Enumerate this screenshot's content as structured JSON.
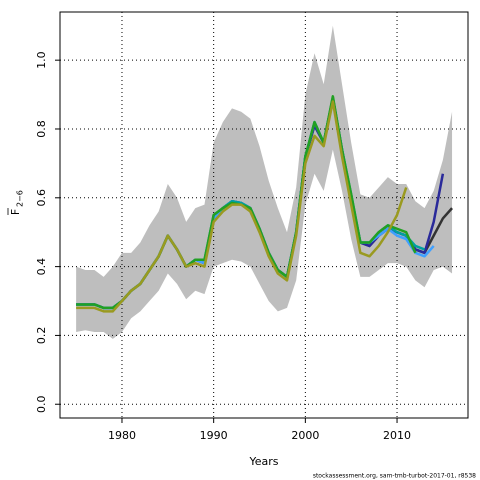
{
  "chart_data": {
    "type": "line",
    "xlabel": "Years",
    "ylabel": {
      "text": "F",
      "subscript": "2−6"
    },
    "footer": "stockassessment.org, sam-tmb-turbot-2017-01, r8538",
    "x": [
      1975,
      1976,
      1977,
      1978,
      1979,
      1980,
      1981,
      1982,
      1983,
      1984,
      1985,
      1986,
      1987,
      1988,
      1989,
      1990,
      1991,
      1992,
      1993,
      1994,
      1995,
      1996,
      1997,
      1998,
      1999,
      2000,
      2001,
      2002,
      2003,
      2004,
      2005,
      2006,
      2007,
      2008,
      2009,
      2010,
      2011,
      2012,
      2013,
      2014,
      2015,
      2016
    ],
    "xlim": [
      1973.24,
      2017.74
    ],
    "ylim": [
      -0.04,
      1.14
    ],
    "xticks": [
      1980,
      1990,
      2000,
      2010
    ],
    "yticks": [
      {
        "value": 0,
        "label": "0.0"
      },
      0.2,
      0.4,
      0.6,
      0.8,
      {
        "value": 1,
        "label": "1.0"
      }
    ],
    "grid": true,
    "band": {
      "color": "#bebebe",
      "upper": [
        0.4,
        0.39,
        0.39,
        0.37,
        0.4,
        0.44,
        0.44,
        0.47,
        0.52,
        0.56,
        0.64,
        0.6,
        0.53,
        0.57,
        0.58,
        0.76,
        0.82,
        0.86,
        0.85,
        0.83,
        0.75,
        0.65,
        0.57,
        0.5,
        0.63,
        0.9,
        1.02,
        0.93,
        1.1,
        0.93,
        0.76,
        0.61,
        0.6,
        0.63,
        0.66,
        0.64,
        0.64,
        0.59,
        0.57,
        0.62,
        0.71,
        0.85
      ],
      "lower": [
        0.21,
        0.215,
        0.21,
        0.21,
        0.19,
        0.21,
        0.25,
        0.27,
        0.3,
        0.33,
        0.38,
        0.35,
        0.305,
        0.33,
        0.32,
        0.4,
        0.41,
        0.42,
        0.415,
        0.4,
        0.35,
        0.3,
        0.27,
        0.28,
        0.36,
        0.58,
        0.67,
        0.62,
        0.74,
        0.62,
        0.48,
        0.37,
        0.37,
        0.39,
        0.41,
        0.41,
        0.4,
        0.36,
        0.34,
        0.39,
        0.4,
        0.38
      ]
    },
    "series": [
      {
        "color": "#333333",
        "values": [
          0.29,
          0.29,
          0.29,
          0.28,
          0.28,
          0.3,
          0.33,
          0.35,
          0.39,
          0.43,
          0.49,
          0.45,
          0.4,
          0.42,
          0.41,
          0.54,
          0.57,
          0.59,
          0.585,
          0.57,
          0.51,
          0.44,
          0.39,
          0.37,
          0.5,
          0.72,
          0.81,
          0.76,
          0.89,
          0.74,
          0.6,
          0.47,
          0.46,
          0.49,
          0.51,
          0.5,
          0.49,
          0.45,
          0.44,
          0.49,
          0.54,
          0.57
        ]
      },
      {
        "color": "#2a2a9a",
        "values": [
          0.29,
          0.29,
          0.29,
          0.28,
          0.28,
          0.3,
          0.33,
          0.35,
          0.39,
          0.43,
          0.49,
          0.45,
          0.4,
          0.42,
          0.41,
          0.54,
          0.57,
          0.59,
          0.585,
          0.57,
          0.51,
          0.44,
          0.39,
          0.37,
          0.5,
          0.72,
          0.81,
          0.76,
          0.89,
          0.74,
          0.6,
          0.47,
          0.46,
          0.49,
          0.51,
          0.5,
          0.49,
          0.45,
          0.44,
          0.53,
          0.67,
          null
        ]
      },
      {
        "color": "#3fa0ff",
        "values": [
          0.29,
          0.29,
          0.29,
          0.28,
          0.28,
          0.3,
          0.33,
          0.35,
          0.39,
          0.43,
          0.49,
          0.45,
          0.4,
          0.42,
          0.41,
          0.54,
          0.57,
          0.59,
          0.585,
          0.57,
          0.51,
          0.44,
          0.39,
          0.37,
          0.5,
          0.72,
          0.82,
          0.76,
          0.89,
          0.74,
          0.6,
          0.47,
          0.47,
          0.49,
          0.51,
          0.49,
          0.48,
          0.44,
          0.43,
          0.46,
          null,
          null
        ]
      },
      {
        "color": "#00a0a0",
        "values": [
          0.29,
          0.29,
          0.29,
          0.28,
          0.28,
          0.3,
          0.33,
          0.35,
          0.39,
          0.43,
          0.49,
          0.45,
          0.4,
          0.42,
          0.42,
          0.55,
          0.57,
          0.59,
          0.585,
          0.57,
          0.51,
          0.44,
          0.39,
          0.37,
          0.5,
          0.72,
          0.82,
          0.76,
          0.89,
          0.74,
          0.61,
          0.47,
          0.47,
          0.5,
          0.52,
          0.5,
          0.49,
          0.46,
          0.45,
          null,
          null,
          null
        ]
      },
      {
        "color": "#22a022",
        "values": [
          0.29,
          0.29,
          0.29,
          0.28,
          0.28,
          0.3,
          0.33,
          0.35,
          0.39,
          0.43,
          0.49,
          0.45,
          0.4,
          0.42,
          0.42,
          0.55,
          0.57,
          0.585,
          0.58,
          0.57,
          0.51,
          0.44,
          0.39,
          0.37,
          0.5,
          0.72,
          0.82,
          0.76,
          0.895,
          0.74,
          0.61,
          0.47,
          0.47,
          0.5,
          0.52,
          0.51,
          0.5,
          0.44,
          null,
          null,
          null,
          null
        ]
      },
      {
        "color": "#9a9a20",
        "values": [
          0.28,
          0.28,
          0.28,
          0.27,
          0.27,
          0.3,
          0.33,
          0.35,
          0.39,
          0.43,
          0.49,
          0.45,
          0.4,
          0.41,
          0.4,
          0.53,
          0.56,
          0.58,
          0.58,
          0.56,
          0.5,
          0.43,
          0.38,
          0.36,
          0.49,
          0.7,
          0.78,
          0.75,
          0.88,
          0.72,
          0.58,
          0.44,
          0.43,
          0.46,
          0.5,
          0.55,
          0.63,
          null,
          null,
          null,
          null,
          null
        ]
      }
    ]
  }
}
